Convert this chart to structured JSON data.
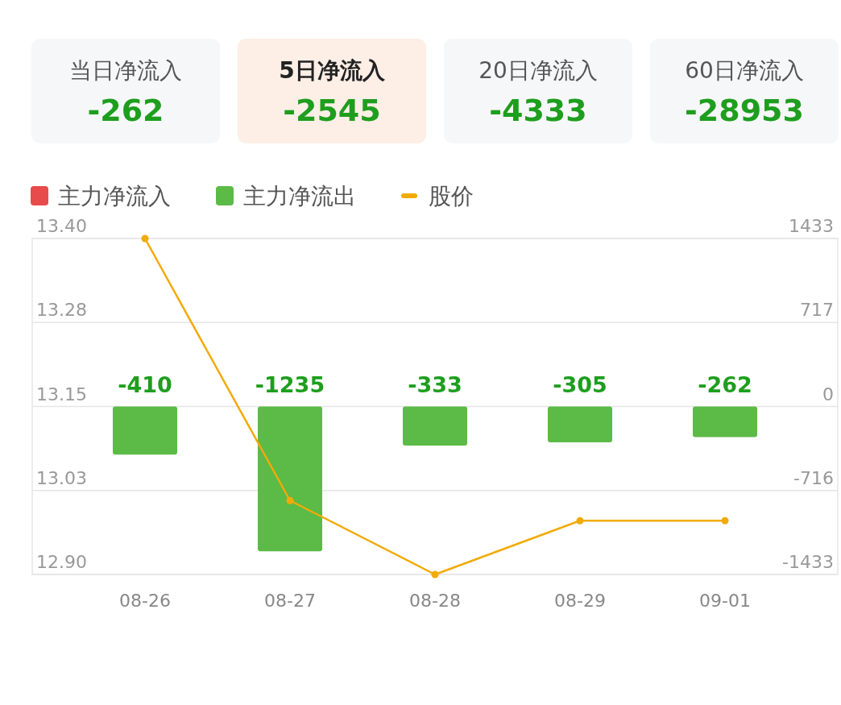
{
  "chart_data": [
    {
      "type": "other",
      "categories": [
        "当日净流入",
        "5日净流入",
        "20日净流入",
        "60日净流入"
      ],
      "values": [
        -262,
        -2545,
        -4333,
        -28953
      ],
      "data_labels": true,
      "color": "#1e9e1e",
      "colors": [
        "#f6f7f9",
        "#fdeee6",
        "#f6f7f9",
        "#f6f7f9"
      ]
    },
    {
      "type": "bar",
      "categories": [
        "08-26",
        "08-27",
        "08-28",
        "08-29",
        "09-01"
      ],
      "legend": "top left",
      "grid": "y",
      "ylim": [
        12.9,
        13.4
      ],
      "yticks": [
        {
          "value": 13.4,
          "label": "13.40"
        },
        {
          "value": 13.275,
          "label": "13.28"
        },
        13.15,
        {
          "value": 13.025,
          "label": "13.03"
        },
        {
          "value": 12.9,
          "label": "12.90"
        }
      ],
      "y2lim": [
        -1433,
        1433
      ],
      "y2ticks": [
        1433,
        {
          "value": 716.5,
          "label": "717"
        },
        0,
        {
          "value": -716.5,
          "label": "-716"
        },
        -1433
      ],
      "series": [
        {
          "name": "主力净流入",
          "type": "bar",
          "axis": "y2",
          "color": "#e84b4b",
          "values": [
            null,
            null,
            null,
            null,
            null
          ]
        },
        {
          "name": "主力净流出",
          "type": "bar",
          "axis": "y2",
          "color": "#5cba47",
          "values": [
            -410,
            -1235,
            -333,
            -305,
            -262
          ],
          "data_labels": true
        },
        {
          "name": "股价",
          "type": "line",
          "axis": "y",
          "color": "#f2aa07",
          "marker": "circle",
          "values": [
            13.4,
            13.01,
            12.9,
            12.98,
            12.98
          ]
        }
      ]
    }
  ]
}
